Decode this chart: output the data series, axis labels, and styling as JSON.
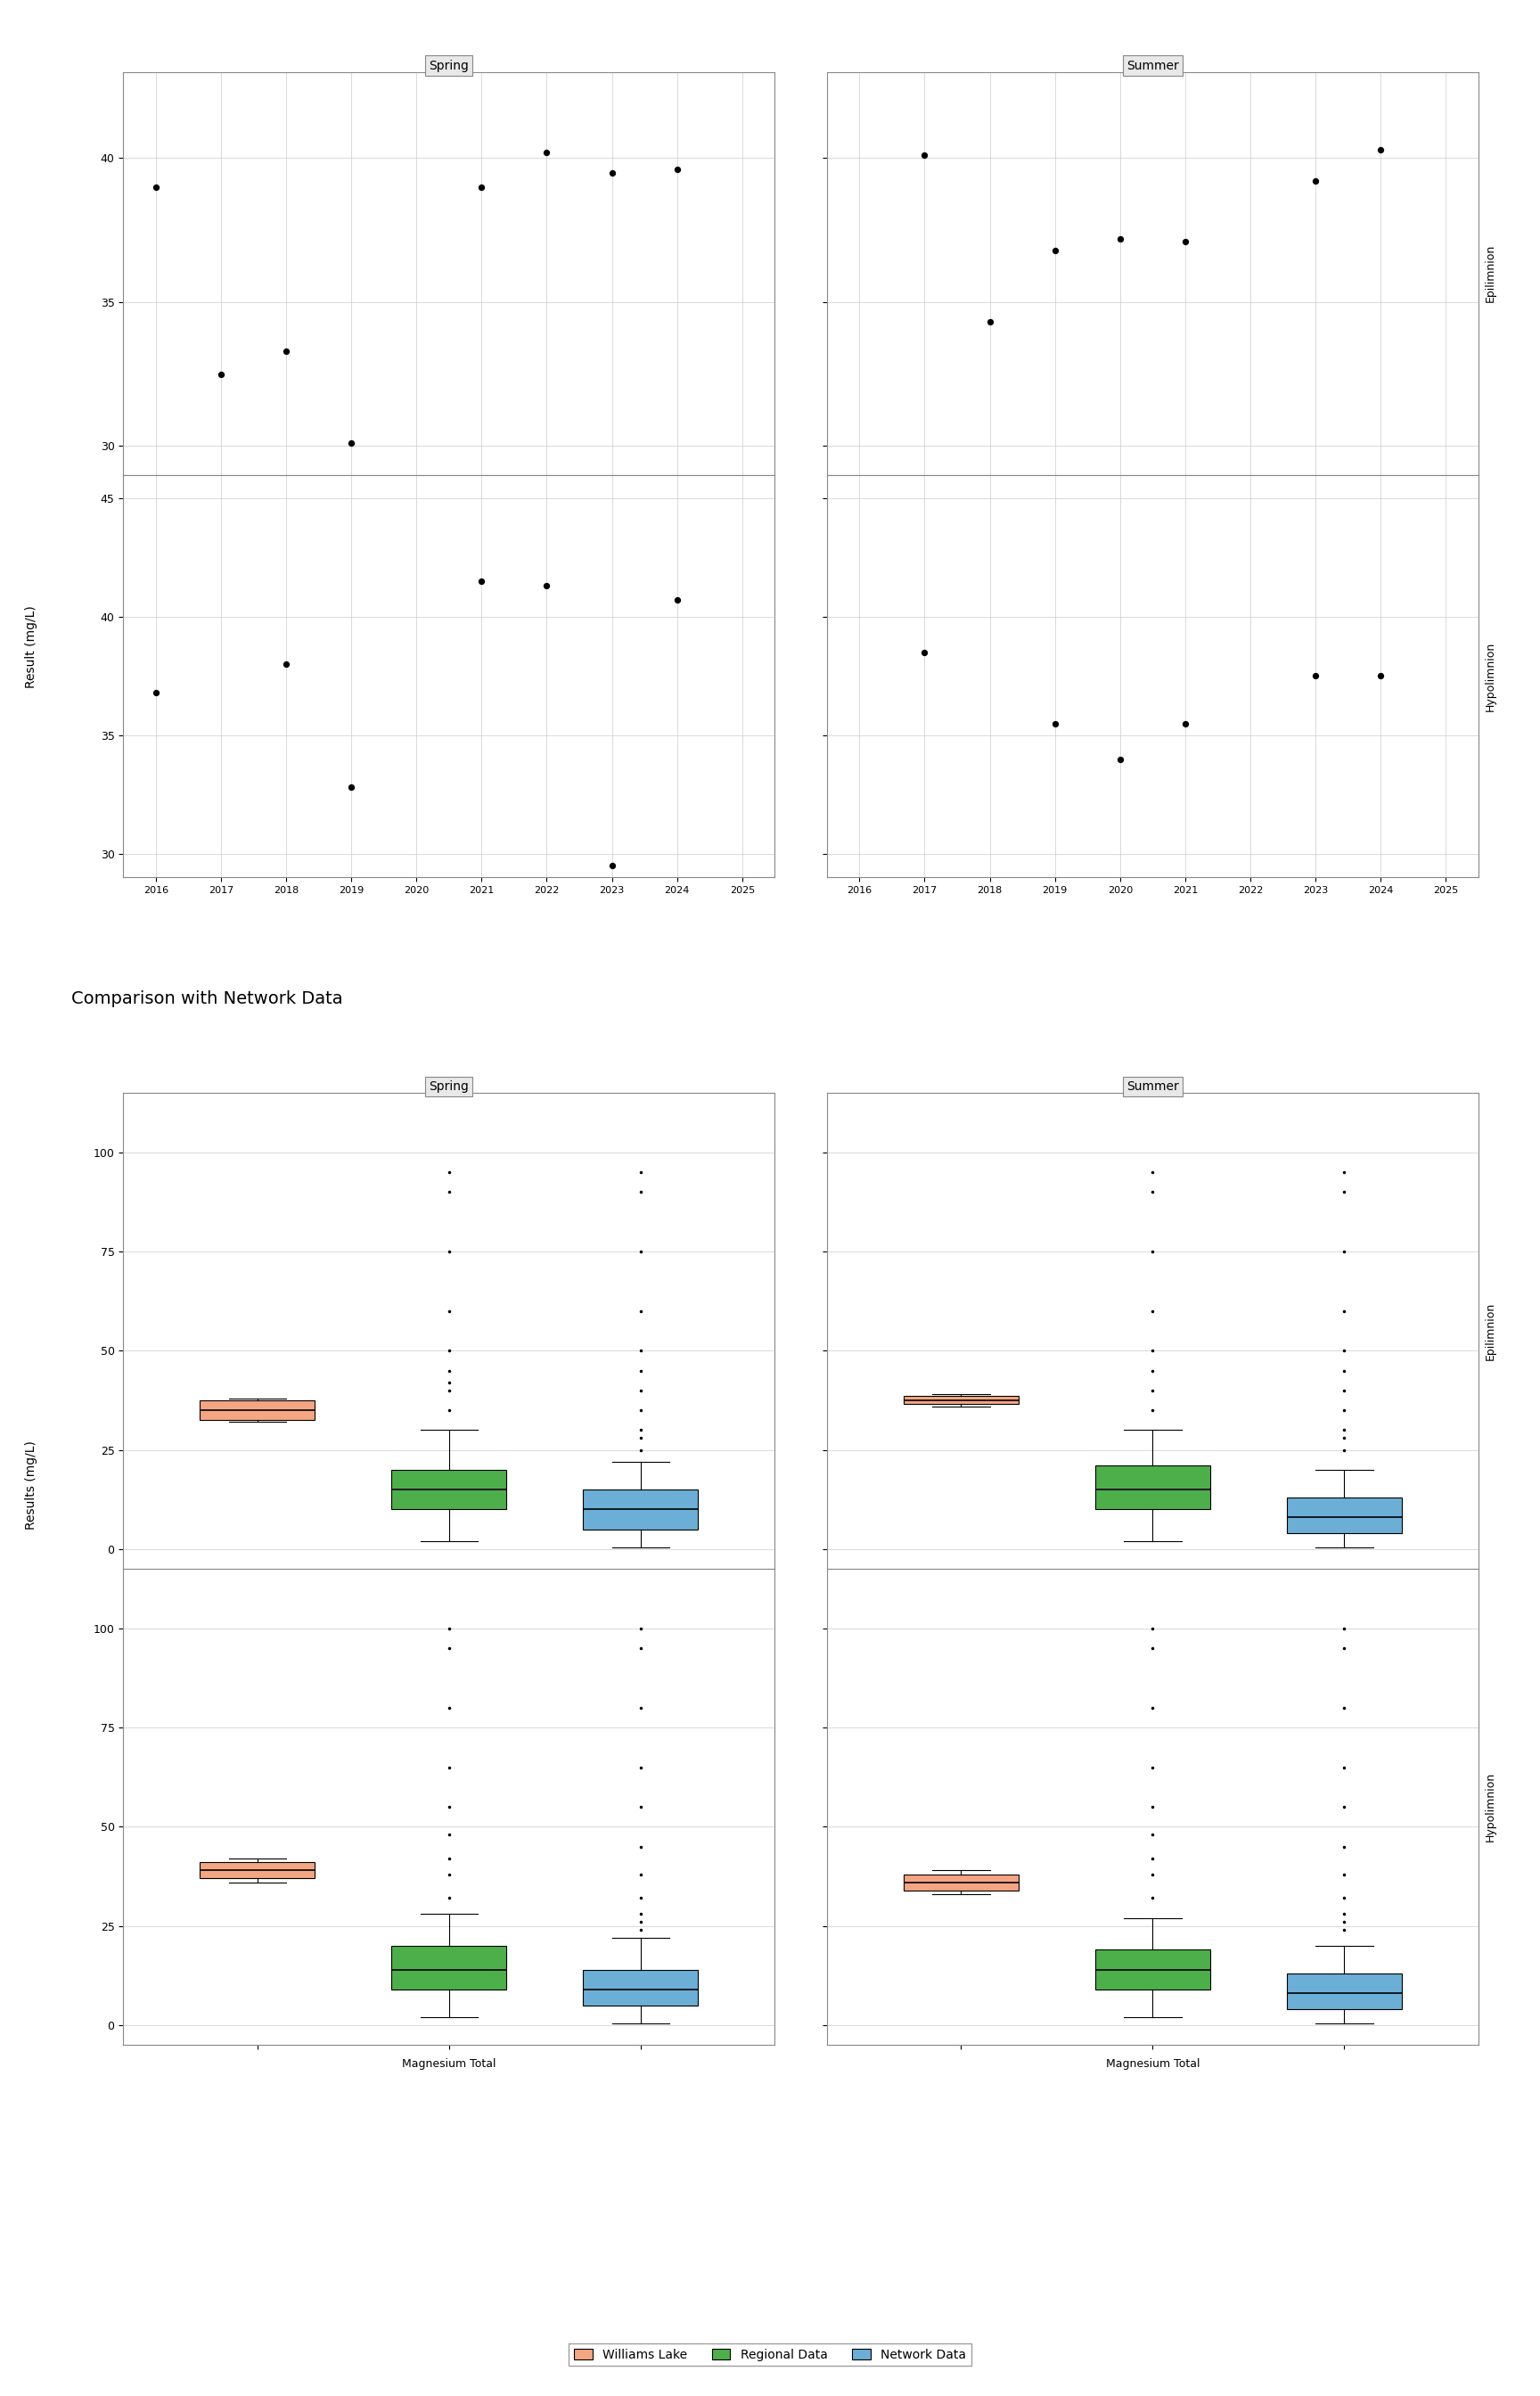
{
  "title1": "Magnesium Total",
  "title2": "Comparison with Network Data",
  "ylabel_scatter": "Result (mg/L)",
  "ylabel_box": "Results (mg/L)",
  "xlabel_box": "Magnesium Total",
  "seasons": [
    "Spring",
    "Summer"
  ],
  "strata": [
    "Epilimnion",
    "Hypolimnion"
  ],
  "scatter": {
    "spring_epi": {
      "x": [
        2016,
        2017,
        2018,
        2019,
        2020,
        2021,
        2022,
        2023,
        2024
      ],
      "y": [
        39.0,
        32.5,
        33.3,
        30.1,
        null,
        39.0,
        40.2,
        39.5,
        39.6
      ]
    },
    "summer_epi": {
      "x": [
        2016,
        2017,
        2018,
        2019,
        2020,
        2021,
        2022,
        2023,
        2024
      ],
      "y": [
        null,
        40.1,
        34.3,
        36.8,
        37.2,
        37.1,
        null,
        39.2,
        40.3
      ]
    },
    "spring_hypo": {
      "x": [
        2016,
        2017,
        2018,
        2019,
        2020,
        2021,
        2022,
        2023,
        2024
      ],
      "y": [
        36.8,
        null,
        38.0,
        32.8,
        null,
        41.5,
        41.3,
        29.5,
        40.7
      ]
    },
    "summer_hypo": {
      "x": [
        2016,
        2017,
        2018,
        2019,
        2020,
        2021,
        2022,
        2023,
        2024
      ],
      "y": [
        null,
        38.5,
        null,
        35.5,
        34.0,
        35.5,
        null,
        37.5,
        37.5
      ]
    }
  },
  "scatter_ylim_epi": [
    29,
    43
  ],
  "scatter_ylim_hypo": [
    29,
    46
  ],
  "scatter_yticks_epi": [
    30,
    35,
    40
  ],
  "scatter_yticks_hypo": [
    30,
    35,
    40,
    45
  ],
  "scatter_xlim": [
    2015.5,
    2025.5
  ],
  "scatter_xticks": [
    2016,
    2017,
    2018,
    2019,
    2020,
    2021,
    2022,
    2023,
    2024,
    2025
  ],
  "box": {
    "williams_lake_spring_epi": {
      "median": 35.0,
      "q1": 32.5,
      "q3": 37.5,
      "whislo": 32.0,
      "whishi": 38.0,
      "fliers": []
    },
    "regional_spring_epi": {
      "median": 15.0,
      "q1": 10.0,
      "q3": 20.0,
      "whislo": 2.0,
      "whishi": 30.0,
      "fliers": [
        35,
        40,
        42,
        45,
        50,
        60,
        75,
        90,
        95
      ]
    },
    "network_spring_epi": {
      "median": 10.0,
      "q1": 5.0,
      "q3": 15.0,
      "whislo": 0.5,
      "whishi": 22.0,
      "fliers": [
        25,
        28,
        30,
        35,
        40,
        45,
        50,
        60,
        75,
        90,
        95
      ]
    },
    "williams_lake_summer_epi": {
      "median": 37.5,
      "q1": 36.5,
      "q3": 38.5,
      "whislo": 36.0,
      "whishi": 39.0,
      "fliers": []
    },
    "regional_summer_epi": {
      "median": 15.0,
      "q1": 10.0,
      "q3": 21.0,
      "whislo": 2.0,
      "whishi": 30.0,
      "fliers": [
        35,
        40,
        45,
        50,
        60,
        75,
        90,
        95
      ]
    },
    "network_summer_epi": {
      "median": 8.0,
      "q1": 4.0,
      "q3": 13.0,
      "whislo": 0.5,
      "whishi": 20.0,
      "fliers": [
        25,
        28,
        30,
        35,
        40,
        45,
        50,
        60,
        75,
        90,
        95
      ]
    },
    "williams_lake_spring_hypo": {
      "median": 39.0,
      "q1": 37.0,
      "q3": 41.0,
      "whislo": 36.0,
      "whishi": 42.0,
      "fliers": []
    },
    "regional_spring_hypo": {
      "median": 14.0,
      "q1": 9.0,
      "q3": 20.0,
      "whislo": 2.0,
      "whishi": 28.0,
      "fliers": [
        32,
        38,
        42,
        48,
        55,
        65,
        80,
        95,
        100
      ]
    },
    "network_spring_hypo": {
      "median": 9.0,
      "q1": 5.0,
      "q3": 14.0,
      "whislo": 0.5,
      "whishi": 22.0,
      "fliers": [
        24,
        26,
        28,
        32,
        38,
        45,
        55,
        65,
        80,
        95,
        100
      ]
    },
    "williams_lake_summer_hypo": {
      "median": 36.0,
      "q1": 34.0,
      "q3": 38.0,
      "whislo": 33.0,
      "whishi": 39.0,
      "fliers": []
    },
    "regional_summer_hypo": {
      "median": 14.0,
      "q1": 9.0,
      "q3": 19.0,
      "whislo": 2.0,
      "whishi": 27.0,
      "fliers": [
        32,
        38,
        42,
        48,
        55,
        65,
        80,
        95,
        100
      ]
    },
    "network_summer_hypo": {
      "median": 8.0,
      "q1": 4.0,
      "q3": 13.0,
      "whislo": 0.5,
      "whishi": 20.0,
      "fliers": [
        24,
        26,
        28,
        32,
        38,
        45,
        55,
        65,
        80,
        95,
        100
      ]
    }
  },
  "colors": {
    "williams_lake": "#F4A582",
    "regional": "#4DAF4A",
    "network": "#6BAED6",
    "strip_bg": "#E8E8E8",
    "grid": "#CCCCCC",
    "panel_border": "#999999"
  },
  "legend_labels": [
    "Williams Lake",
    "Regional Data",
    "Network Data"
  ],
  "legend_colors": [
    "#F4A582",
    "#4DAF4A",
    "#6BAED6"
  ]
}
